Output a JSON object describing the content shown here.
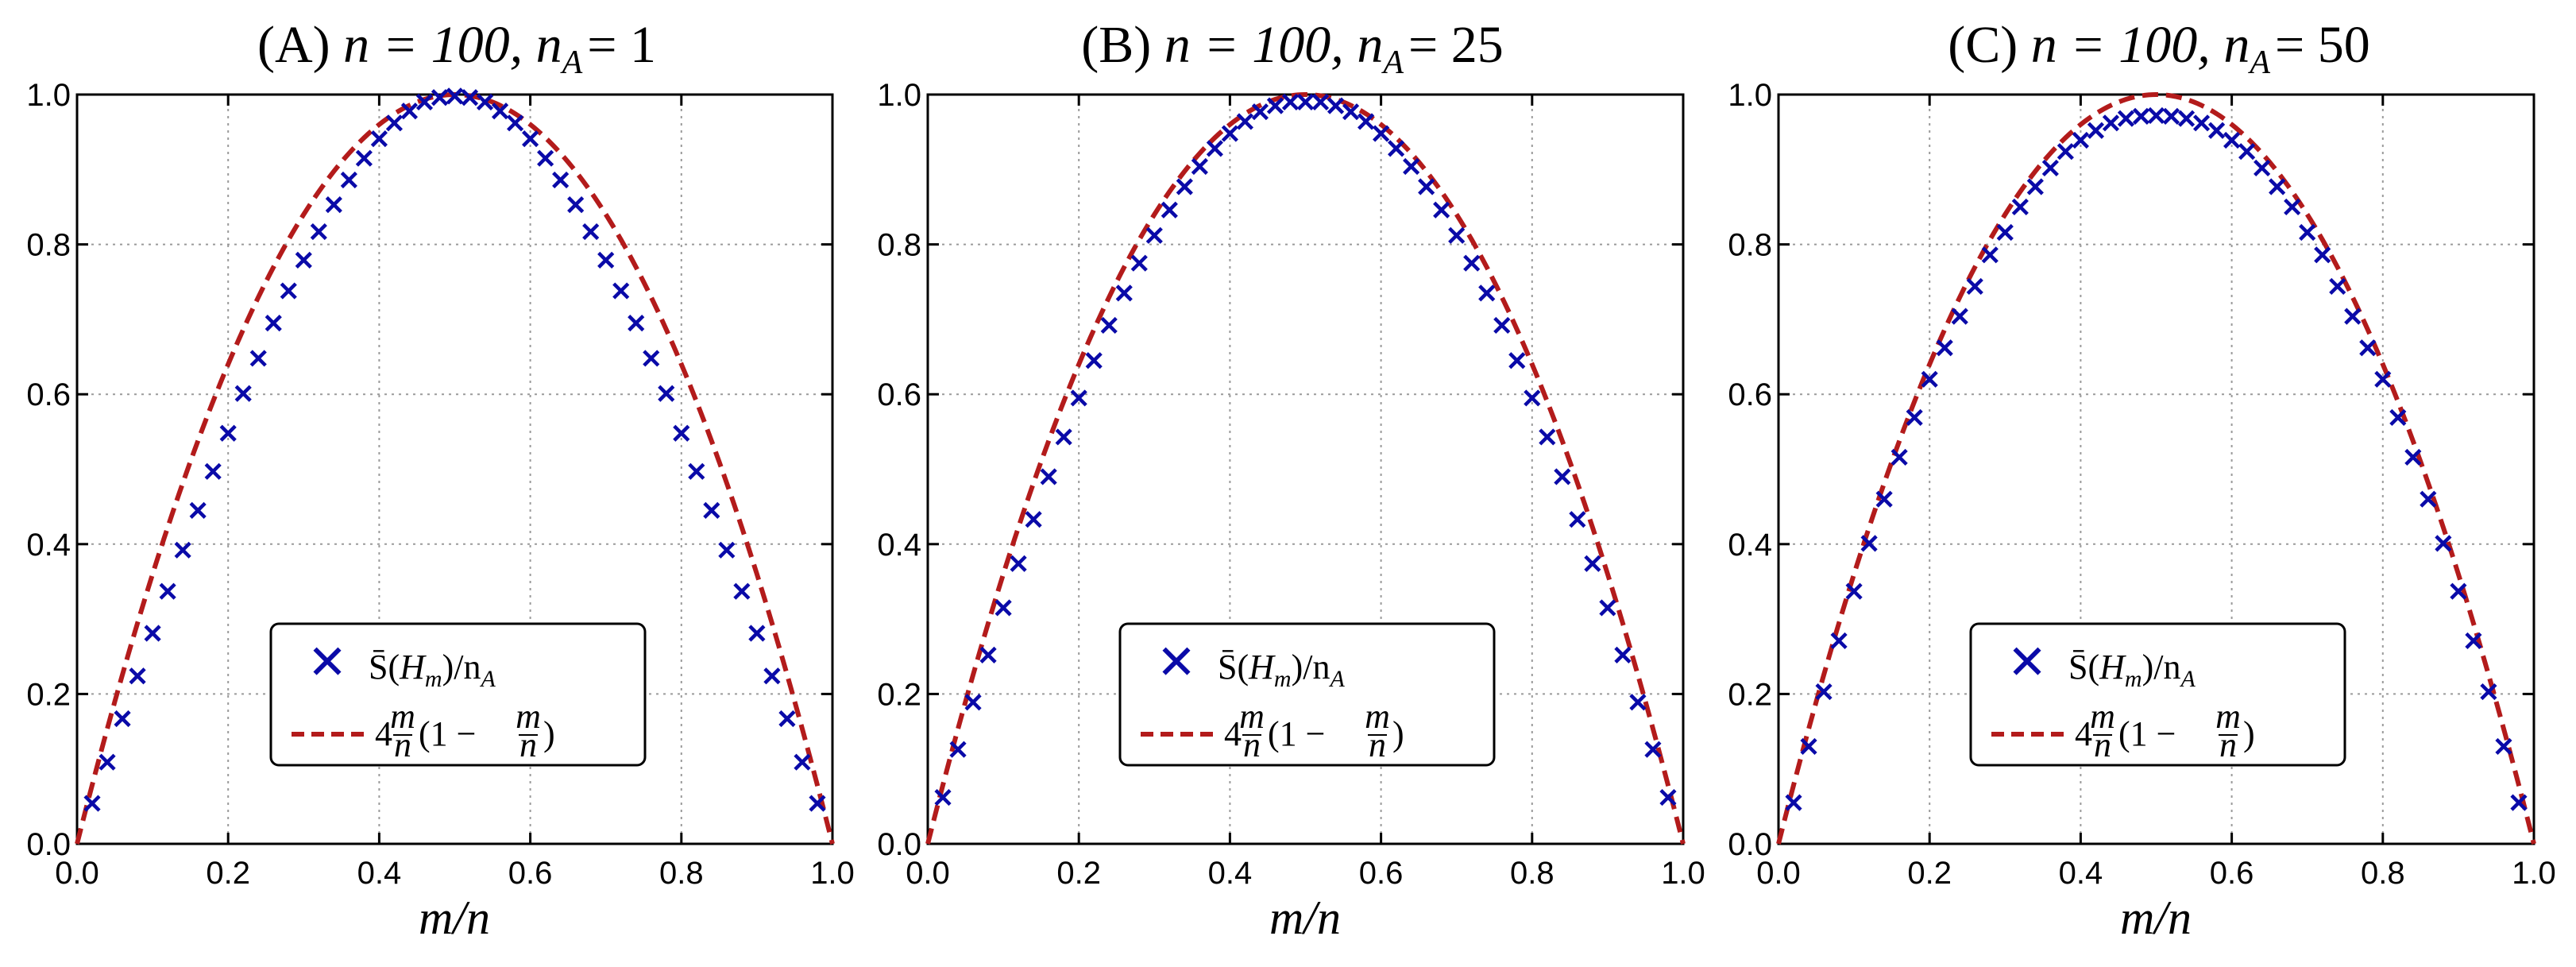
{
  "chart_data": [
    {
      "type": "scatter",
      "title": "(A) n = 100, n_A = 1",
      "title_parts": {
        "letter": "(A)",
        "n_label": "n = 100,",
        "nA_label": "A",
        "nA_value": "= 1"
      },
      "xlabel": "m/n",
      "ylabel": "",
      "xlim": [
        0.0,
        1.0
      ],
      "ylim": [
        0.0,
        1.0
      ],
      "grid": true,
      "legend_position": "lower-center",
      "x_ticks": [
        "0.0",
        "0.2",
        "0.4",
        "0.6",
        "0.8",
        "1.0"
      ],
      "y_ticks": [
        "0.0",
        "0.2",
        "0.4",
        "0.6",
        "0.8",
        "1.0"
      ],
      "series": [
        {
          "name": "S̄(H_m)/n_A",
          "marker": "x",
          "color": "#0a0aa8",
          "x": [
            0.02,
            0.04,
            0.06,
            0.08,
            0.1,
            0.12,
            0.14,
            0.16,
            0.18,
            0.2,
            0.22,
            0.24,
            0.26,
            0.28,
            0.3,
            0.32,
            0.34,
            0.36,
            0.38,
            0.4,
            0.42,
            0.44,
            0.46,
            0.48,
            0.5,
            0.52,
            0.54,
            0.56,
            0.58,
            0.6,
            0.62,
            0.64,
            0.66,
            0.68,
            0.7,
            0.72,
            0.74,
            0.76,
            0.78,
            0.8,
            0.82,
            0.84,
            0.86,
            0.88,
            0.9,
            0.92,
            0.94,
            0.96,
            0.98
          ],
          "y": [
            0.054,
            0.109,
            0.167,
            0.224,
            0.281,
            0.337,
            0.392,
            0.445,
            0.497,
            0.548,
            0.601,
            0.648,
            0.695,
            0.738,
            0.779,
            0.817,
            0.853,
            0.886,
            0.915,
            0.941,
            0.962,
            0.978,
            0.99,
            0.996,
            0.998,
            0.996,
            0.99,
            0.978,
            0.962,
            0.941,
            0.915,
            0.886,
            0.853,
            0.817,
            0.779,
            0.738,
            0.695,
            0.648,
            0.601,
            0.548,
            0.497,
            0.445,
            0.392,
            0.337,
            0.281,
            0.224,
            0.167,
            0.109,
            0.054
          ]
        },
        {
          "name": "4 m/n (1 − m/n)",
          "style": "dashed-line",
          "color": "#b31b1b",
          "function": "4*x*(1-x)"
        }
      ]
    },
    {
      "type": "scatter",
      "title": "(B) n = 100, n_A = 25",
      "title_parts": {
        "letter": "(B)",
        "n_label": "n = 100,",
        "nA_label": "A",
        "nA_value": "= 25"
      },
      "xlabel": "m/n",
      "ylabel": "",
      "xlim": [
        0.0,
        1.0
      ],
      "ylim": [
        0.0,
        1.0
      ],
      "grid": true,
      "legend_position": "lower-center",
      "x_ticks": [
        "0.0",
        "0.2",
        "0.4",
        "0.6",
        "0.8",
        "1.0"
      ],
      "y_ticks": [
        "0.0",
        "0.2",
        "0.4",
        "0.6",
        "0.8",
        "1.0"
      ],
      "series": [
        {
          "name": "S̄(H_m)/n_A",
          "marker": "x",
          "color": "#0a0aa8",
          "x": [
            0.02,
            0.04,
            0.06,
            0.08,
            0.1,
            0.12,
            0.14,
            0.16,
            0.18,
            0.2,
            0.22,
            0.24,
            0.26,
            0.28,
            0.3,
            0.32,
            0.34,
            0.36,
            0.38,
            0.4,
            0.42,
            0.44,
            0.46,
            0.48,
            0.5,
            0.52,
            0.54,
            0.56,
            0.58,
            0.6,
            0.62,
            0.64,
            0.66,
            0.68,
            0.7,
            0.72,
            0.74,
            0.76,
            0.78,
            0.8,
            0.82,
            0.84,
            0.86,
            0.88,
            0.9,
            0.92,
            0.94,
            0.96,
            0.98
          ],
          "y": [
            0.062,
            0.126,
            0.189,
            0.252,
            0.315,
            0.374,
            0.433,
            0.49,
            0.543,
            0.595,
            0.645,
            0.692,
            0.735,
            0.775,
            0.812,
            0.846,
            0.877,
            0.904,
            0.928,
            0.948,
            0.964,
            0.977,
            0.985,
            0.99,
            0.99,
            0.99,
            0.985,
            0.977,
            0.964,
            0.948,
            0.928,
            0.904,
            0.877,
            0.846,
            0.812,
            0.775,
            0.735,
            0.692,
            0.645,
            0.595,
            0.543,
            0.49,
            0.433,
            0.374,
            0.315,
            0.252,
            0.189,
            0.126,
            0.062
          ]
        },
        {
          "name": "4 m/n (1 − m/n)",
          "style": "dashed-line",
          "color": "#b31b1b",
          "function": "4*x*(1-x)"
        }
      ]
    },
    {
      "type": "scatter",
      "title": "(C) n = 100, n_A = 50",
      "title_parts": {
        "letter": "(C)",
        "n_label": "n = 100,",
        "nA_label": "A",
        "nA_value": "= 50"
      },
      "xlabel": "m/n",
      "ylabel": "",
      "xlim": [
        0.0,
        1.0
      ],
      "ylim": [
        0.0,
        1.0
      ],
      "grid": true,
      "legend_position": "lower-center",
      "x_ticks": [
        "0.0",
        "0.2",
        "0.4",
        "0.6",
        "0.8",
        "1.0"
      ],
      "y_ticks": [
        "0.0",
        "0.2",
        "0.4",
        "0.6",
        "0.8",
        "1.0"
      ],
      "series": [
        {
          "name": "S̄(H_m)/n_A",
          "marker": "x",
          "color": "#0a0aa8",
          "x": [
            0.02,
            0.04,
            0.06,
            0.08,
            0.1,
            0.12,
            0.14,
            0.16,
            0.18,
            0.2,
            0.22,
            0.24,
            0.26,
            0.28,
            0.3,
            0.32,
            0.34,
            0.36,
            0.38,
            0.4,
            0.42,
            0.44,
            0.46,
            0.48,
            0.5,
            0.52,
            0.54,
            0.56,
            0.58,
            0.6,
            0.62,
            0.64,
            0.66,
            0.68,
            0.7,
            0.72,
            0.74,
            0.76,
            0.78,
            0.8,
            0.82,
            0.84,
            0.86,
            0.88,
            0.9,
            0.92,
            0.94,
            0.96,
            0.98
          ],
          "y": [
            0.055,
            0.13,
            0.203,
            0.271,
            0.337,
            0.401,
            0.46,
            0.516,
            0.569,
            0.62,
            0.662,
            0.704,
            0.744,
            0.786,
            0.816,
            0.85,
            0.877,
            0.902,
            0.924,
            0.939,
            0.952,
            0.962,
            0.968,
            0.971,
            0.972,
            0.971,
            0.968,
            0.962,
            0.952,
            0.939,
            0.924,
            0.902,
            0.877,
            0.85,
            0.816,
            0.786,
            0.744,
            0.704,
            0.662,
            0.62,
            0.569,
            0.516,
            0.46,
            0.401,
            0.337,
            0.271,
            0.203,
            0.13,
            0.055
          ]
        },
        {
          "name": "4 m/n (1 − m/n)",
          "style": "dashed-line",
          "color": "#b31b1b",
          "function": "4*x*(1-x)"
        }
      ]
    }
  ],
  "legend": {
    "scatter_label_prefix": "S̄(",
    "scatter_label_script": "H",
    "scatter_label_sub_m": "m",
    "scatter_label_mid": ")/n",
    "scatter_label_sub_A": "A",
    "curve_label_coef": "4",
    "curve_label_num": "m",
    "curve_label_den": "n",
    "curve_label_paren_open": "(1 −",
    "curve_label_paren_close": ")"
  },
  "colors": {
    "marker": "#0a0aa8",
    "curve": "#b31b1b",
    "grid": "#9a9a9a",
    "axes": "#000000"
  }
}
